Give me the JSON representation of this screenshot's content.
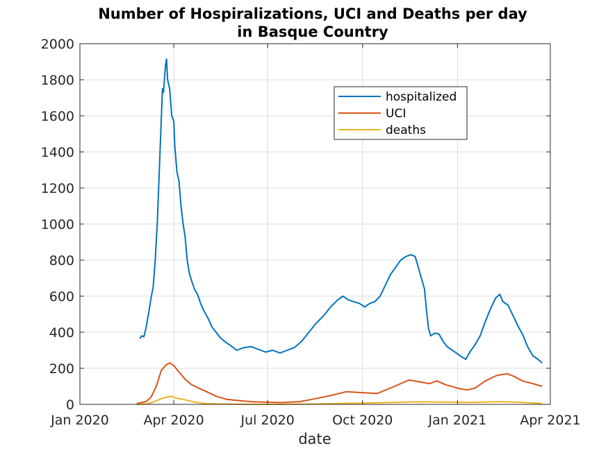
{
  "chart_data": {
    "type": "line",
    "title": [
      "Number of Hospiralizations, UCI and Deaths per day",
      "in Basque Country"
    ],
    "xlabel": "date",
    "ylabel": "",
    "xlim": [
      "2020-01-01",
      "2021-04-01"
    ],
    "ylim": [
      0,
      2000
    ],
    "xticks": [
      {
        "date": "2020-01-01",
        "label": "Jan 2020"
      },
      {
        "date": "2020-04-01",
        "label": "Apr 2020"
      },
      {
        "date": "2020-07-01",
        "label": "Jul 2020"
      },
      {
        "date": "2020-10-01",
        "label": "Oct 2020"
      },
      {
        "date": "2021-01-01",
        "label": "Jan 2021"
      },
      {
        "date": "2021-04-01",
        "label": "Apr 2021"
      }
    ],
    "yticks": [
      0,
      200,
      400,
      600,
      800,
      1000,
      1200,
      1400,
      1600,
      1800,
      2000
    ],
    "grid": true,
    "legend_position": "top-right",
    "series": [
      {
        "name": "hospitalized",
        "color": "#0072BD",
        "points": [
          [
            "2020-02-28",
            365
          ],
          [
            "2020-03-01",
            380
          ],
          [
            "2020-03-03",
            375
          ],
          [
            "2020-03-05",
            420
          ],
          [
            "2020-03-08",
            520
          ],
          [
            "2020-03-10",
            590
          ],
          [
            "2020-03-12",
            650
          ],
          [
            "2020-03-14",
            800
          ],
          [
            "2020-03-16",
            1000
          ],
          [
            "2020-03-18",
            1300
          ],
          [
            "2020-03-20",
            1600
          ],
          [
            "2020-03-21",
            1750
          ],
          [
            "2020-03-22",
            1730
          ],
          [
            "2020-03-24",
            1880
          ],
          [
            "2020-03-25",
            1915
          ],
          [
            "2020-03-26",
            1800
          ],
          [
            "2020-03-28",
            1750
          ],
          [
            "2020-03-30",
            1600
          ],
          [
            "2020-04-01",
            1570
          ],
          [
            "2020-04-02",
            1430
          ],
          [
            "2020-04-04",
            1290
          ],
          [
            "2020-04-06",
            1240
          ],
          [
            "2020-04-08",
            1100
          ],
          [
            "2020-04-10",
            1000
          ],
          [
            "2020-04-12",
            930
          ],
          [
            "2020-04-14",
            800
          ],
          [
            "2020-04-16",
            730
          ],
          [
            "2020-04-18",
            690
          ],
          [
            "2020-04-21",
            640
          ],
          [
            "2020-04-24",
            610
          ],
          [
            "2020-04-27",
            560
          ],
          [
            "2020-04-30",
            520
          ],
          [
            "2020-05-04",
            480
          ],
          [
            "2020-05-08",
            430
          ],
          [
            "2020-05-12",
            400
          ],
          [
            "2020-05-16",
            370
          ],
          [
            "2020-05-20",
            350
          ],
          [
            "2020-05-25",
            330
          ],
          [
            "2020-06-01",
            300
          ],
          [
            "2020-06-08",
            315
          ],
          [
            "2020-06-15",
            320
          ],
          [
            "2020-06-22",
            305
          ],
          [
            "2020-06-29",
            290
          ],
          [
            "2020-07-06",
            300
          ],
          [
            "2020-07-13",
            285
          ],
          [
            "2020-07-20",
            300
          ],
          [
            "2020-07-27",
            315
          ],
          [
            "2020-08-03",
            350
          ],
          [
            "2020-08-10",
            400
          ],
          [
            "2020-08-17",
            450
          ],
          [
            "2020-08-24",
            490
          ],
          [
            "2020-08-31",
            540
          ],
          [
            "2020-09-07",
            580
          ],
          [
            "2020-09-12",
            600
          ],
          [
            "2020-09-17",
            580
          ],
          [
            "2020-09-22",
            570
          ],
          [
            "2020-09-28",
            560
          ],
          [
            "2020-10-03",
            540
          ],
          [
            "2020-10-08",
            560
          ],
          [
            "2020-10-13",
            570
          ],
          [
            "2020-10-18",
            600
          ],
          [
            "2020-10-23",
            660
          ],
          [
            "2020-10-28",
            720
          ],
          [
            "2020-11-02",
            760
          ],
          [
            "2020-11-07",
            800
          ],
          [
            "2020-11-12",
            820
          ],
          [
            "2020-11-17",
            830
          ],
          [
            "2020-11-21",
            820
          ],
          [
            "2020-11-24",
            760
          ],
          [
            "2020-11-27",
            700
          ],
          [
            "2020-11-30",
            640
          ],
          [
            "2020-12-02",
            520
          ],
          [
            "2020-12-04",
            420
          ],
          [
            "2020-12-06",
            380
          ],
          [
            "2020-12-10",
            395
          ],
          [
            "2020-12-14",
            390
          ],
          [
            "2020-12-18",
            350
          ],
          [
            "2020-12-22",
            320
          ],
          [
            "2020-12-27",
            300
          ],
          [
            "2021-01-01",
            280
          ],
          [
            "2021-01-06",
            260
          ],
          [
            "2021-01-09",
            250
          ],
          [
            "2021-01-13",
            290
          ],
          [
            "2021-01-18",
            330
          ],
          [
            "2021-01-23",
            380
          ],
          [
            "2021-01-28",
            460
          ],
          [
            "2021-02-02",
            530
          ],
          [
            "2021-02-07",
            590
          ],
          [
            "2021-02-11",
            610
          ],
          [
            "2021-02-14",
            570
          ],
          [
            "2021-02-19",
            550
          ],
          [
            "2021-02-24",
            490
          ],
          [
            "2021-03-01",
            430
          ],
          [
            "2021-03-05",
            390
          ],
          [
            "2021-03-10",
            320
          ],
          [
            "2021-03-15",
            270
          ],
          [
            "2021-03-20",
            250
          ],
          [
            "2021-03-24",
            230
          ]
        ]
      },
      {
        "name": "UCI",
        "color": "#D95319",
        "points": [
          [
            "2020-02-25",
            5
          ],
          [
            "2020-03-01",
            10
          ],
          [
            "2020-03-05",
            15
          ],
          [
            "2020-03-10",
            40
          ],
          [
            "2020-03-15",
            100
          ],
          [
            "2020-03-20",
            190
          ],
          [
            "2020-03-25",
            220
          ],
          [
            "2020-03-28",
            230
          ],
          [
            "2020-04-01",
            215
          ],
          [
            "2020-04-06",
            180
          ],
          [
            "2020-04-12",
            140
          ],
          [
            "2020-04-18",
            110
          ],
          [
            "2020-04-25",
            90
          ],
          [
            "2020-05-03",
            70
          ],
          [
            "2020-05-12",
            45
          ],
          [
            "2020-05-22",
            28
          ],
          [
            "2020-06-01",
            22
          ],
          [
            "2020-06-15",
            15
          ],
          [
            "2020-07-01",
            12
          ],
          [
            "2020-07-15",
            10
          ],
          [
            "2020-08-01",
            15
          ],
          [
            "2020-08-15",
            30
          ],
          [
            "2020-09-01",
            50
          ],
          [
            "2020-09-15",
            70
          ],
          [
            "2020-10-01",
            65
          ],
          [
            "2020-10-15",
            60
          ],
          [
            "2020-11-01",
            100
          ],
          [
            "2020-11-15",
            135
          ],
          [
            "2020-11-25",
            125
          ],
          [
            "2020-12-05",
            115
          ],
          [
            "2020-12-12",
            130
          ],
          [
            "2020-12-20",
            110
          ],
          [
            "2021-01-01",
            90
          ],
          [
            "2021-01-10",
            80
          ],
          [
            "2021-01-18",
            90
          ],
          [
            "2021-01-28",
            130
          ],
          [
            "2021-02-08",
            160
          ],
          [
            "2021-02-18",
            170
          ],
          [
            "2021-02-25",
            155
          ],
          [
            "2021-03-05",
            130
          ],
          [
            "2021-03-15",
            115
          ],
          [
            "2021-03-24",
            100
          ]
        ]
      },
      {
        "name": "deaths",
        "color": "#EDB120",
        "points": [
          [
            "2020-02-25",
            0
          ],
          [
            "2020-03-05",
            2
          ],
          [
            "2020-03-10",
            8
          ],
          [
            "2020-03-15",
            20
          ],
          [
            "2020-03-20",
            32
          ],
          [
            "2020-03-25",
            40
          ],
          [
            "2020-03-30",
            45
          ],
          [
            "2020-04-03",
            35
          ],
          [
            "2020-04-08",
            30
          ],
          [
            "2020-04-14",
            22
          ],
          [
            "2020-04-22",
            12
          ],
          [
            "2020-05-01",
            5
          ],
          [
            "2020-05-15",
            2
          ],
          [
            "2020-06-01",
            1
          ],
          [
            "2020-07-01",
            0
          ],
          [
            "2020-08-01",
            1
          ],
          [
            "2020-09-01",
            4
          ],
          [
            "2020-10-01",
            7
          ],
          [
            "2020-11-01",
            11
          ],
          [
            "2020-11-20",
            14
          ],
          [
            "2020-12-15",
            13
          ],
          [
            "2021-01-15",
            11
          ],
          [
            "2021-02-10",
            15
          ],
          [
            "2021-03-01",
            12
          ],
          [
            "2021-03-24",
            5
          ]
        ]
      }
    ]
  }
}
